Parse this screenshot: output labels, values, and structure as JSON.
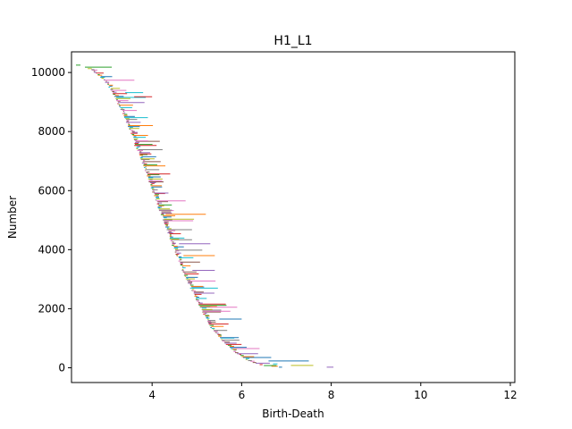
{
  "chart_data": {
    "type": "barcode",
    "title": "H1_L1",
    "xlabel": "Birth-Death",
    "ylabel": "Number",
    "xlim": [
      2.2,
      12.1
    ],
    "ylim": [
      -500,
      10700
    ],
    "x_ticks": [
      4,
      6,
      8,
      10,
      12
    ],
    "y_ticks": [
      0,
      2000,
      4000,
      6000,
      8000,
      10000
    ],
    "grid": false,
    "palette": [
      "#1f77b4",
      "#ff7f0e",
      "#2ca02c",
      "#d62728",
      "#9467bd",
      "#8c564b",
      "#e377c2",
      "#7f7f7f",
      "#bcbd22",
      "#17becf"
    ],
    "bar_count_estimate": 10200,
    "birth_curve": [
      [
        2.3,
        10250
      ],
      [
        2.6,
        10100
      ],
      [
        2.9,
        9750
      ],
      [
        3.1,
        9300
      ],
      [
        3.3,
        8700
      ],
      [
        3.5,
        8000
      ],
      [
        3.7,
        7200
      ],
      [
        3.9,
        6400
      ],
      [
        4.1,
        5500
      ],
      [
        4.3,
        4700
      ],
      [
        4.5,
        3900
      ],
      [
        4.7,
        3150
      ],
      [
        4.9,
        2500
      ],
      [
        5.1,
        1900
      ],
      [
        5.3,
        1350
      ],
      [
        5.55,
        900
      ],
      [
        5.8,
        550
      ],
      [
        6.1,
        250
      ],
      [
        6.4,
        80
      ],
      [
        6.8,
        0
      ]
    ],
    "long_bars": [
      {
        "birth": 2.3,
        "death": 2.4,
        "y": 10250,
        "color": "#2ca02c"
      },
      {
        "birth": 2.5,
        "death": 3.1,
        "y": 10180,
        "color": "#2ca02c"
      },
      {
        "birth": 3.6,
        "death": 4.0,
        "y": 9180,
        "color": "#d62728"
      },
      {
        "birth": 3.4,
        "death": 3.8,
        "y": 9320,
        "color": "#17becf"
      },
      {
        "birth": 3.6,
        "death": 4.1,
        "y": 7530,
        "color": "#d62728"
      },
      {
        "birth": 4.3,
        "death": 5.2,
        "y": 5200,
        "color": "#ff7f0e"
      },
      {
        "birth": 4.6,
        "death": 5.3,
        "y": 4200,
        "color": "#9467bd"
      },
      {
        "birth": 4.7,
        "death": 5.4,
        "y": 3800,
        "color": "#ff7f0e"
      },
      {
        "birth": 4.9,
        "death": 5.4,
        "y": 3300,
        "color": "#9467bd"
      },
      {
        "birth": 5.5,
        "death": 6.0,
        "y": 1650,
        "color": "#1f77b4"
      },
      {
        "birth": 5.3,
        "death": 5.9,
        "y": 2050,
        "color": "#e377c2"
      },
      {
        "birth": 5.8,
        "death": 6.4,
        "y": 650,
        "color": "#e377c2"
      },
      {
        "birth": 6.6,
        "death": 7.5,
        "y": 230,
        "color": "#1f77b4"
      },
      {
        "birth": 7.1,
        "death": 7.6,
        "y": 80,
        "color": "#bcbd22"
      },
      {
        "birth": 7.9,
        "death": 8.05,
        "y": 20,
        "color": "#9467bd"
      },
      {
        "birth": 6.7,
        "death": 6.8,
        "y": 130,
        "color": "#17becf"
      }
    ]
  }
}
